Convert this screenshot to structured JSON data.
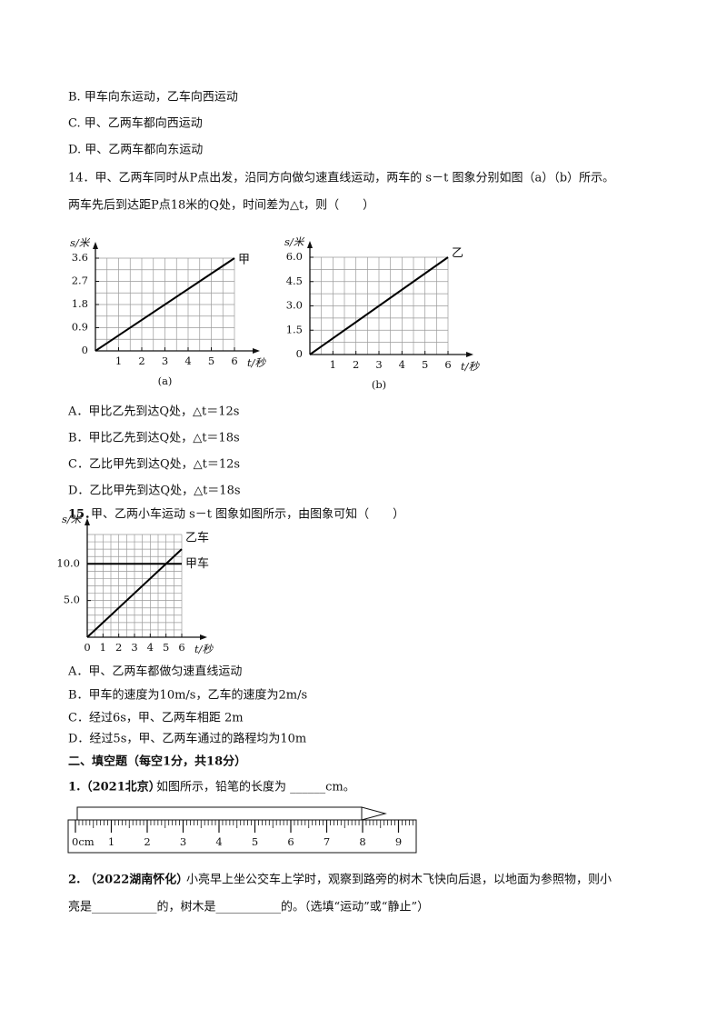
{
  "q13_options": [
    "B. 甲车向东运动，乙车向西运动",
    "C. 甲、乙两车都向西运动",
    "D. 甲、乙两车都向东运动"
  ],
  "q14": {
    "stem": [
      "14．甲、乙两车同时从P点出发，沿同方向做匀速直线运动，两车的 s－t 图象分别如图（a）（b）所示。",
      "两车先后到达距P点18米的Q处，时间差为△t，则（　　）"
    ],
    "figures": [
      {
        "type": "line",
        "y_label": "s/米",
        "x_label": "t/秒",
        "caption": "(a)",
        "xlim": [
          0,
          6
        ],
        "ylim": [
          0,
          3.6
        ],
        "xticks": [
          1,
          2,
          3,
          4,
          5,
          6
        ],
        "yticks": [
          0,
          0.9,
          1.8,
          2.7,
          3.6
        ],
        "grid": true,
        "series": [
          {
            "name": "甲",
            "color": "#000000",
            "x": [
              0,
              6
            ],
            "values": [
              0,
              3.6
            ]
          }
        ]
      },
      {
        "type": "line",
        "y_label": "s/米",
        "x_label": "t/秒",
        "caption": "(b)",
        "xlim": [
          0,
          6
        ],
        "ylim": [
          0,
          6
        ],
        "xticks": [
          1,
          2,
          3,
          4,
          5,
          6
        ],
        "yticks": [
          0,
          1.5,
          {
            "value": 3,
            "label": "3.0"
          },
          4.5,
          {
            "value": 6,
            "label": "6.0"
          }
        ],
        "grid": true,
        "series": [
          {
            "name": "乙",
            "color": "#000000",
            "x": [
              0,
              6
            ],
            "values": [
              0,
              6
            ]
          }
        ]
      }
    ],
    "options": [
      "A．甲比乙先到达Q处，△t＝12s",
      "B．甲比乙先到达Q处，△t＝18s",
      "C．乙比甲先到达Q处，△t＝12s",
      "D．乙比甲先到达Q处，△t＝18s"
    ]
  },
  "q15": {
    "number": "15．",
    "stem": "甲、乙两小车运动 s－t 图象如图所示，由图象可知（　　）",
    "figure": {
      "type": "line",
      "y_label": "s/米",
      "x_label": "t/秒",
      "xlim": [
        0,
        6
      ],
      "ylim": [
        0,
        14
      ],
      "xticks": [
        0,
        1,
        2,
        3,
        4,
        5,
        6
      ],
      "yticks": [
        {
          "value": 5,
          "label": "5.0"
        },
        {
          "value": 10,
          "label": "10.0"
        }
      ],
      "grid": true,
      "series": [
        {
          "name": "甲车",
          "color": "#000000",
          "x": [
            0,
            6
          ],
          "values": [
            10,
            10
          ]
        },
        {
          "name": "乙车",
          "color": "#000000",
          "x": [
            0,
            6
          ],
          "values": [
            0,
            12
          ]
        }
      ]
    },
    "options": [
      "A．甲、乙两车都做匀速直线运动",
      "B．甲车的速度为10m/s，乙车的速度为2m/s",
      "C．经过6s，甲、乙两车相距 2m",
      "D．经过5s，甲、乙两车通过的路程均为10m"
    ]
  },
  "section2": "二、填空题（每空1分，共18分）",
  "q1": {
    "number": "1.（2021北京）",
    "text": "如图所示，铅笔的长度为 ______cm。",
    "ruler_ticks": [
      {
        "value": 0,
        "label": "0cm"
      },
      1,
      2,
      3,
      4,
      5,
      6,
      7,
      8,
      9
    ]
  },
  "q2": {
    "number": "2. （2022湖南怀化）",
    "lines": [
      "小亮早上坐公交车上学时，观察到路旁的树木飞快向后退，以地面为参照物，则小",
      "亮是___________的，树木是___________的。（选填“运动”或“静止”）"
    ]
  }
}
